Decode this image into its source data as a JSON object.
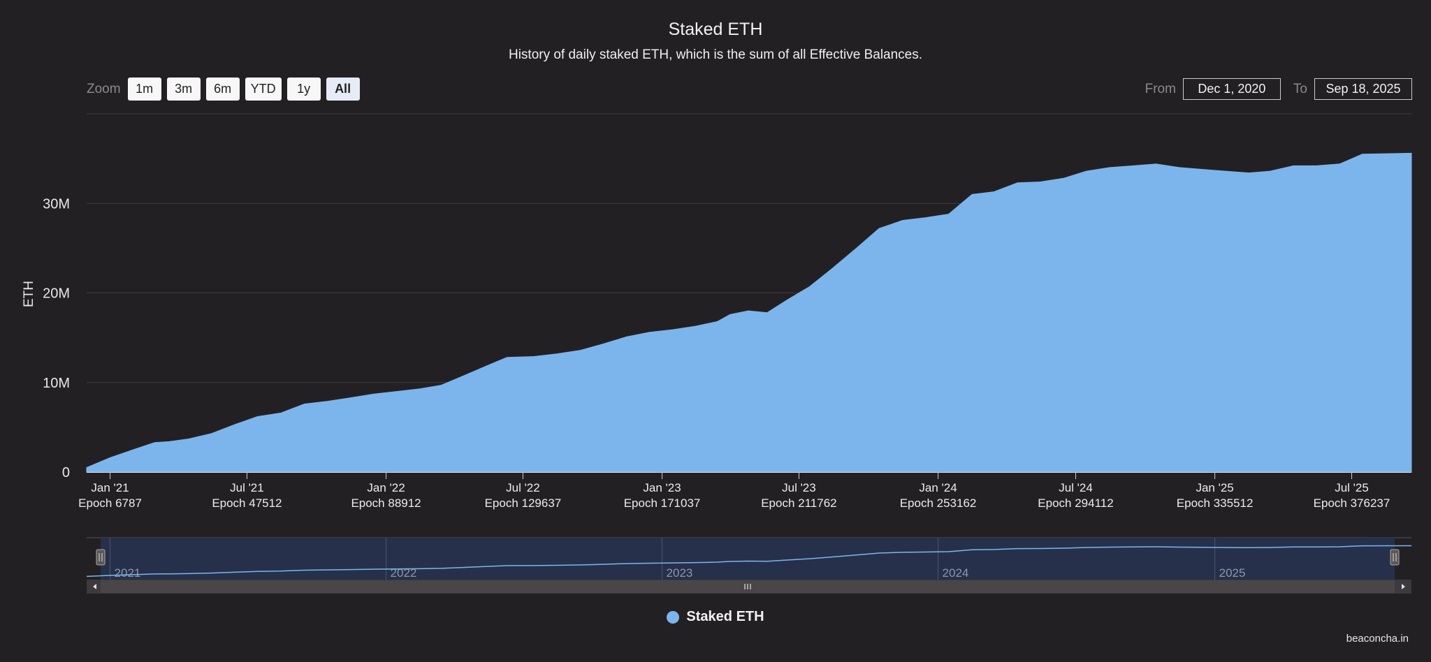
{
  "title": "Staked ETH",
  "subtitle": "History of daily staked ETH, which is the sum of all Effective Balances.",
  "zoom": {
    "label": "Zoom",
    "buttons": [
      "1m",
      "3m",
      "6m",
      "YTD",
      "1y",
      "All"
    ],
    "active": "All"
  },
  "range": {
    "from_label": "From",
    "from_value": "Dec 1, 2020",
    "to_label": "To",
    "to_value": "Sep 18, 2025"
  },
  "legend": {
    "label": "Staked ETH"
  },
  "credit": "beaconcha.in",
  "colors": {
    "background": "#232024",
    "series": "#7cb5ec",
    "navigator_mask": "#26304a",
    "scrollbar": "#3d3a3d"
  },
  "chart_data": {
    "type": "area",
    "title": "Staked ETH",
    "subtitle": "History of daily staked ETH, which is the sum of all Effective Balances.",
    "ylabel": "ETH",
    "ylim": [
      0,
      40000000
    ],
    "yticks": [
      {
        "value": 0,
        "label": "0"
      },
      {
        "value": 10000000,
        "label": "10M"
      },
      {
        "value": 20000000,
        "label": "20M"
      },
      {
        "value": 30000000,
        "label": "30M"
      }
    ],
    "xlim": [
      "2020-12-01",
      "2025-09-18"
    ],
    "xticks": [
      {
        "date": "2021-01-01",
        "label": "Jan '21",
        "epoch": "Epoch 6787"
      },
      {
        "date": "2021-07-01",
        "label": "Jul '21",
        "epoch": "Epoch 47512"
      },
      {
        "date": "2022-01-01",
        "label": "Jan '22",
        "epoch": "Epoch 88912"
      },
      {
        "date": "2022-07-01",
        "label": "Jul '22",
        "epoch": "Epoch 129637"
      },
      {
        "date": "2023-01-01",
        "label": "Jan '23",
        "epoch": "Epoch 171037"
      },
      {
        "date": "2023-07-01",
        "label": "Jul '23",
        "epoch": "Epoch 211762"
      },
      {
        "date": "2024-01-01",
        "label": "Jan '24",
        "epoch": "Epoch 253162"
      },
      {
        "date": "2024-07-01",
        "label": "Jul '24",
        "epoch": "Epoch 294112"
      },
      {
        "date": "2025-01-01",
        "label": "Jan '25",
        "epoch": "Epoch 335512"
      },
      {
        "date": "2025-07-01",
        "label": "Jul '25",
        "epoch": "Epoch 376237"
      }
    ],
    "navigator_years": [
      {
        "date": "2021-01-01",
        "label": "2021"
      },
      {
        "date": "2022-01-01",
        "label": "2022"
      },
      {
        "date": "2023-01-01",
        "label": "2023"
      },
      {
        "date": "2024-01-01",
        "label": "2024"
      },
      {
        "date": "2025-01-01",
        "label": "2025"
      }
    ],
    "grid": true,
    "legend_position": "bottom-center",
    "series": [
      {
        "name": "Staked ETH",
        "color": "#7cb5ec",
        "points": [
          [
            "2020-12-01",
            500000
          ],
          [
            "2021-01-01",
            1600000
          ],
          [
            "2021-02-01",
            2500000
          ],
          [
            "2021-03-01",
            3300000
          ],
          [
            "2021-03-20",
            3400000
          ],
          [
            "2021-04-15",
            3700000
          ],
          [
            "2021-05-15",
            4300000
          ],
          [
            "2021-06-15",
            5300000
          ],
          [
            "2021-07-15",
            6200000
          ],
          [
            "2021-08-15",
            6600000
          ],
          [
            "2021-09-15",
            7600000
          ],
          [
            "2021-10-15",
            7900000
          ],
          [
            "2021-11-15",
            8300000
          ],
          [
            "2021-12-15",
            8700000
          ],
          [
            "2022-01-15",
            9000000
          ],
          [
            "2022-02-15",
            9300000
          ],
          [
            "2022-03-15",
            9700000
          ],
          [
            "2022-04-15",
            10800000
          ],
          [
            "2022-05-15",
            11900000
          ],
          [
            "2022-06-10",
            12800000
          ],
          [
            "2022-07-15",
            12900000
          ],
          [
            "2022-08-15",
            13200000
          ],
          [
            "2022-09-15",
            13600000
          ],
          [
            "2022-10-15",
            14300000
          ],
          [
            "2022-11-15",
            15100000
          ],
          [
            "2022-12-15",
            15600000
          ],
          [
            "2023-01-15",
            15900000
          ],
          [
            "2023-02-15",
            16300000
          ],
          [
            "2023-03-15",
            16800000
          ],
          [
            "2023-04-01",
            17600000
          ],
          [
            "2023-04-25",
            18000000
          ],
          [
            "2023-05-20",
            17800000
          ],
          [
            "2023-06-15",
            19200000
          ],
          [
            "2023-07-15",
            20700000
          ],
          [
            "2023-08-15",
            22800000
          ],
          [
            "2023-09-15",
            25000000
          ],
          [
            "2023-10-15",
            27200000
          ],
          [
            "2023-11-15",
            28100000
          ],
          [
            "2023-12-15",
            28400000
          ],
          [
            "2024-01-15",
            28800000
          ],
          [
            "2024-02-15",
            31000000
          ],
          [
            "2024-03-15",
            31300000
          ],
          [
            "2024-04-15",
            32300000
          ],
          [
            "2024-05-15",
            32400000
          ],
          [
            "2024-06-15",
            32800000
          ],
          [
            "2024-07-15",
            33600000
          ],
          [
            "2024-08-15",
            34000000
          ],
          [
            "2024-09-15",
            34200000
          ],
          [
            "2024-10-15",
            34400000
          ],
          [
            "2024-11-15",
            34000000
          ],
          [
            "2024-12-15",
            33800000
          ],
          [
            "2025-01-15",
            33600000
          ],
          [
            "2025-02-15",
            33400000
          ],
          [
            "2025-03-15",
            33600000
          ],
          [
            "2025-04-15",
            34200000
          ],
          [
            "2025-05-15",
            34200000
          ],
          [
            "2025-06-15",
            34400000
          ],
          [
            "2025-07-15",
            35500000
          ],
          [
            "2025-09-18",
            35600000
          ]
        ]
      }
    ]
  }
}
